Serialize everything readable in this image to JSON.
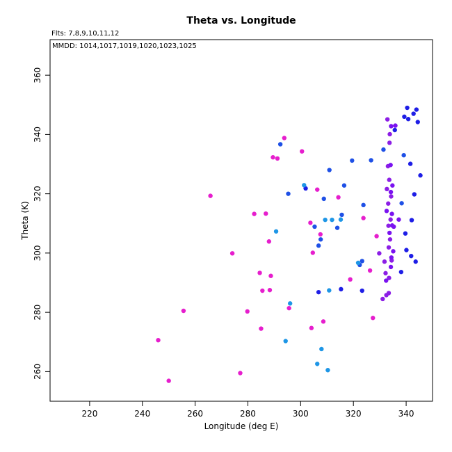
{
  "chart_data": {
    "type": "scatter",
    "title": "Theta vs. Longitude",
    "xlabel": "Longitude (deg E)",
    "ylabel": "Theta (K)",
    "annotations": [
      "Flts: 7,8,9,10,11,12",
      "MMDD: 1014,1017,1019,1020,1023,1025"
    ],
    "xlim": [
      205,
      350
    ],
    "ylim": [
      250,
      372
    ],
    "xticks": [
      "220",
      "240",
      "260",
      "280",
      "300",
      "320",
      "340"
    ],
    "yticks": [
      "260",
      "280",
      "300",
      "320",
      "340",
      "360"
    ],
    "grid": false,
    "legend": "none",
    "colors": {
      "magenta": "#e61ecd",
      "violet": "#8c1ee6",
      "purple": "#7a12f0",
      "blue": "#1e1ee6",
      "royal": "#1e50e6",
      "sky": "#1e96e6"
    },
    "points": [
      [
        246,
        270.6,
        "magenta"
      ],
      [
        250,
        256.9,
        "magenta"
      ],
      [
        255.6,
        280.5,
        "magenta"
      ],
      [
        265.8,
        319.3,
        "magenta"
      ],
      [
        274.1,
        299.9,
        "magenta"
      ],
      [
        277.1,
        259.5,
        "magenta"
      ],
      [
        279.8,
        280.3,
        "magenta"
      ],
      [
        282.4,
        313.2,
        "magenta"
      ],
      [
        284.5,
        293.3,
        "magenta"
      ],
      [
        285,
        274.5,
        "magenta"
      ],
      [
        285.5,
        287.3,
        "magenta"
      ],
      [
        286.8,
        313.3,
        "magenta"
      ],
      [
        288,
        303.9,
        "magenta"
      ],
      [
        288.3,
        287.5,
        "magenta"
      ],
      [
        288.7,
        292.3,
        "magenta"
      ],
      [
        289.5,
        332.3,
        "magenta"
      ],
      [
        291.2,
        331.9,
        "magenta"
      ],
      [
        293.8,
        338.8,
        "magenta"
      ],
      [
        295.6,
        281.4,
        "magenta"
      ],
      [
        300.5,
        334.3,
        "magenta"
      ],
      [
        303.7,
        310.2,
        "magenta"
      ],
      [
        304.1,
        274.7,
        "magenta"
      ],
      [
        304.6,
        300.1,
        "magenta"
      ],
      [
        306.3,
        321.4,
        "magenta"
      ],
      [
        307.5,
        306.3,
        "magenta"
      ],
      [
        308.6,
        276.9,
        "magenta"
      ],
      [
        314.3,
        318.8,
        "magenta"
      ],
      [
        318.8,
        291.1,
        "magenta"
      ],
      [
        323.8,
        311.8,
        "magenta"
      ],
      [
        326.3,
        294.1,
        "magenta"
      ],
      [
        327.4,
        278.1,
        "magenta"
      ],
      [
        328.8,
        305.7,
        "magenta"
      ],
      [
        329.8,
        299.9,
        "violet"
      ],
      [
        331.1,
        284.5,
        "violet"
      ],
      [
        331.8,
        297.1,
        "violet"
      ],
      [
        332.2,
        293.2,
        "violet"
      ],
      [
        332.5,
        285.8,
        "violet"
      ],
      [
        332.7,
        321.6,
        "violet"
      ],
      [
        332.9,
        345.1,
        "violet"
      ],
      [
        333.1,
        329.3,
        "violet"
      ],
      [
        333.2,
        316.7,
        "violet"
      ],
      [
        333.3,
        309.2,
        "violet"
      ],
      [
        333.4,
        301.9,
        "violet"
      ],
      [
        333.4,
        286.5,
        "violet"
      ],
      [
        333.5,
        291.6,
        "violet"
      ],
      [
        333.6,
        324.7,
        "violet"
      ],
      [
        333.7,
        337.2,
        "violet"
      ],
      [
        333.8,
        340.1,
        "violet"
      ],
      [
        333.9,
        304.6,
        "violet"
      ],
      [
        334.1,
        311.3,
        "violet"
      ],
      [
        334.3,
        319.1,
        "violet"
      ],
      [
        334.5,
        297.5,
        "violet"
      ],
      [
        332.4,
        290.7,
        "purple"
      ],
      [
        332.6,
        314.2,
        "purple"
      ],
      [
        333.7,
        306.8,
        "purple"
      ],
      [
        334.1,
        329.7,
        "purple"
      ],
      [
        334.2,
        295.3,
        "purple"
      ],
      [
        334.2,
        320.6,
        "purple"
      ],
      [
        334.3,
        342.8,
        "purple"
      ],
      [
        334.4,
        298.5,
        "purple"
      ],
      [
        334.6,
        313.2,
        "purple"
      ],
      [
        334.7,
        309.3,
        "purple"
      ],
      [
        334.8,
        322.8,
        "purple"
      ],
      [
        335.1,
        300.6,
        "purple"
      ],
      [
        335.3,
        308.9,
        "purple"
      ],
      [
        335.9,
        343.0,
        "purple"
      ],
      [
        337.2,
        311.3,
        "purple"
      ],
      [
        292.3,
        336.7,
        "royal"
      ],
      [
        295.3,
        320.0,
        "royal"
      ],
      [
        305.3,
        308.9,
        "royal"
      ],
      [
        306.8,
        302.5,
        "royal"
      ],
      [
        307.6,
        304.6,
        "royal"
      ],
      [
        308.8,
        318.3,
        "royal"
      ],
      [
        310.9,
        328.0,
        "royal"
      ],
      [
        313.9,
        308.5,
        "royal"
      ],
      [
        315.6,
        312.9,
        "royal"
      ],
      [
        316.5,
        322.8,
        "royal"
      ],
      [
        319.5,
        331.2,
        "royal"
      ],
      [
        322.4,
        296.0,
        "royal"
      ],
      [
        323.3,
        297.3,
        "royal"
      ],
      [
        323.8,
        316.2,
        "royal"
      ],
      [
        326.7,
        331.3,
        "royal"
      ],
      [
        331.4,
        334.9,
        "royal"
      ],
      [
        338.3,
        316.8,
        "royal"
      ],
      [
        339.1,
        333.0,
        "royal"
      ],
      [
        301.9,
        321.8,
        "blue"
      ],
      [
        306.8,
        286.8,
        "blue"
      ],
      [
        315.3,
        287.8,
        "blue"
      ],
      [
        323.3,
        287.3,
        "blue"
      ],
      [
        335.7,
        341.5,
        "blue"
      ],
      [
        338.1,
        293.6,
        "blue"
      ],
      [
        339.3,
        346.0,
        "blue"
      ],
      [
        339.7,
        306.6,
        "blue"
      ],
      [
        340.1,
        301.0,
        "blue"
      ],
      [
        340.4,
        349.0,
        "blue"
      ],
      [
        340.8,
        345.2,
        "blue"
      ],
      [
        341.6,
        330.1,
        "blue"
      ],
      [
        341.9,
        299.0,
        "blue"
      ],
      [
        342.1,
        311.1,
        "blue"
      ],
      [
        342.8,
        347.0,
        "blue"
      ],
      [
        343.1,
        319.8,
        "blue"
      ],
      [
        343.6,
        297.1,
        "blue"
      ],
      [
        343.9,
        348.4,
        "blue"
      ],
      [
        344.4,
        344.2,
        "blue"
      ],
      [
        345.4,
        326.2,
        "blue"
      ],
      [
        290.7,
        307.3,
        "sky"
      ],
      [
        294.3,
        270.3,
        "sky"
      ],
      [
        296,
        283.0,
        "sky"
      ],
      [
        301.3,
        322.9,
        "sky"
      ],
      [
        306.3,
        262.6,
        "sky"
      ],
      [
        307.9,
        267.6,
        "sky"
      ],
      [
        309.3,
        311.2,
        "sky"
      ],
      [
        310.3,
        260.5,
        "sky"
      ],
      [
        310.8,
        287.4,
        "sky"
      ],
      [
        311.9,
        311.2,
        "sky"
      ],
      [
        315.2,
        311.3,
        "sky"
      ],
      [
        321.8,
        296.7,
        "sky"
      ]
    ]
  }
}
